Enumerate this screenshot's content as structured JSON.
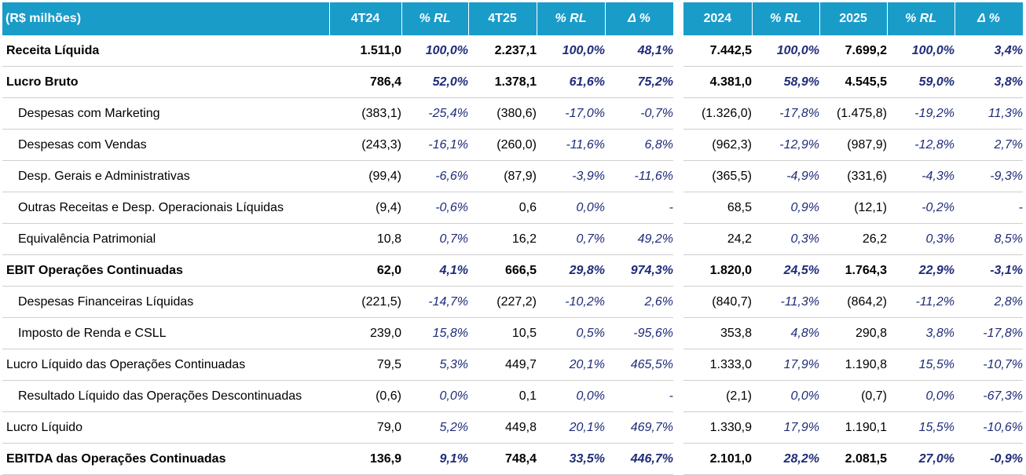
{
  "header": {
    "label": "(R$ milhões)",
    "columns": [
      "4T24",
      "% RL",
      "4T25",
      "% RL",
      "Δ %",
      "2024",
      "% RL",
      "2025",
      "% RL",
      "Δ %"
    ]
  },
  "rows": [
    {
      "label": "Receita Líquida",
      "style": "bold",
      "values": [
        "1.511,0",
        "100,0%",
        "2.237,1",
        "100,0%",
        "48,1%",
        "7.442,5",
        "100,0%",
        "7.699,2",
        "100,0%",
        "3,4%"
      ]
    },
    {
      "label": "Lucro Bruto",
      "style": "bold",
      "values": [
        "786,4",
        "52,0%",
        "1.378,1",
        "61,6%",
        "75,2%",
        "4.381,0",
        "58,9%",
        "4.545,5",
        "59,0%",
        "3,8%"
      ]
    },
    {
      "label": "Despesas com Marketing",
      "style": "indent",
      "values": [
        "(383,1)",
        "-25,4%",
        "(380,6)",
        "-17,0%",
        "-0,7%",
        "(1.326,0)",
        "-17,8%",
        "(1.475,8)",
        "-19,2%",
        "11,3%"
      ]
    },
    {
      "label": "Despesas com Vendas",
      "style": "indent",
      "values": [
        "(243,3)",
        "-16,1%",
        "(260,0)",
        "-11,6%",
        "6,8%",
        "(962,3)",
        "-12,9%",
        "(987,9)",
        "-12,8%",
        "2,7%"
      ]
    },
    {
      "label": "Desp. Gerais e Administrativas",
      "style": "indent",
      "values": [
        "(99,4)",
        "-6,6%",
        "(87,9)",
        "-3,9%",
        "-11,6%",
        "(365,5)",
        "-4,9%",
        "(331,6)",
        "-4,3%",
        "-9,3%"
      ]
    },
    {
      "label": "Outras Receitas e Desp. Operacionais Líquidas",
      "style": "indent",
      "values": [
        "(9,4)",
        "-0,6%",
        "0,6",
        "0,0%",
        "-",
        "68,5",
        "0,9%",
        "(12,1)",
        "-0,2%",
        "-"
      ]
    },
    {
      "label": "Equivalência Patrimonial",
      "style": "indent",
      "values": [
        "10,8",
        "0,7%",
        "16,2",
        "0,7%",
        "49,2%",
        "24,2",
        "0,3%",
        "26,2",
        "0,3%",
        "8,5%"
      ]
    },
    {
      "label": "EBIT Operações Continuadas",
      "style": "bold",
      "values": [
        "62,0",
        "4,1%",
        "666,5",
        "29,8%",
        "974,3%",
        "1.820,0",
        "24,5%",
        "1.764,3",
        "22,9%",
        "-3,1%"
      ]
    },
    {
      "label": "Despesas Financeiras Líquidas",
      "style": "indent",
      "values": [
        "(221,5)",
        "-14,7%",
        "(227,2)",
        "-10,2%",
        "2,6%",
        "(840,7)",
        "-11,3%",
        "(864,2)",
        "-11,2%",
        "2,8%"
      ]
    },
    {
      "label": "Imposto de Renda e CSLL",
      "style": "indent",
      "values": [
        "239,0",
        "15,8%",
        "10,5",
        "0,5%",
        "-95,6%",
        "353,8",
        "4,8%",
        "290,8",
        "3,8%",
        "-17,8%"
      ]
    },
    {
      "label": "Lucro Líquido das Operações Continuadas",
      "style": "normal",
      "values": [
        "79,5",
        "5,3%",
        "449,7",
        "20,1%",
        "465,5%",
        "1.333,0",
        "17,9%",
        "1.190,8",
        "15,5%",
        "-10,7%"
      ]
    },
    {
      "label": "Resultado Líquido das Operações Descontinuadas",
      "style": "indent",
      "values": [
        "(0,6)",
        "0,0%",
        "0,1",
        "0,0%",
        "-",
        "(2,1)",
        "0,0%",
        "(0,7)",
        "0,0%",
        "-67,3%"
      ]
    },
    {
      "label": "Lucro Líquido",
      "style": "normal",
      "values": [
        "79,0",
        "5,2%",
        "449,8",
        "20,1%",
        "469,7%",
        "1.330,9",
        "17,9%",
        "1.190,1",
        "15,5%",
        "-10,6%"
      ]
    },
    {
      "label": "EBITDA das Operações Continuadas",
      "style": "bold",
      "values": [
        "136,9",
        "9,1%",
        "748,4",
        "33,5%",
        "446,7%",
        "2.101,0",
        "28,2%",
        "2.081,5",
        "27,0%",
        "-0,9%"
      ]
    }
  ]
}
